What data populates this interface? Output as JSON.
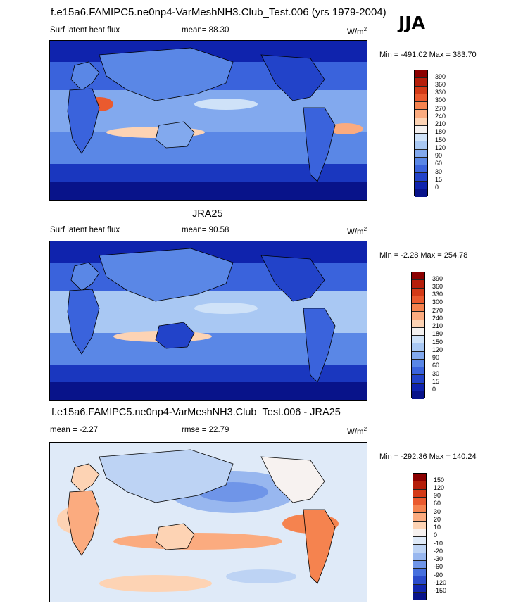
{
  "header": {
    "title": "f.e15a6.FAMIPC5.ne0np4-VarMeshNH3.Club_Test.006 (yrs 1979-2004)",
    "season": "JJA"
  },
  "panels": [
    {
      "id": "model",
      "variable": "Surf latent heat flux",
      "stat_label": "mean=  88.30",
      "units_base": "W/m",
      "units_sup": "2",
      "minmax": "Min = -491.02 Max = 383.70",
      "levels": [
        "390",
        "360",
        "330",
        "300",
        "270",
        "240",
        "210",
        "180",
        "150",
        "120",
        "90",
        "60",
        "30",
        "15",
        "0"
      ],
      "colors": [
        "#8b0000",
        "#b51e0a",
        "#d33a17",
        "#ea5a2e",
        "#f5834f",
        "#fbab7f",
        "#fdd3b4",
        "#f4f1f0",
        "#cfe2f8",
        "#a9c8f3",
        "#82a9ee",
        "#5a87e6",
        "#3a63dc",
        "#2243c9",
        "#0f23ad",
        "#08138a"
      ]
    },
    {
      "id": "obs",
      "heading": "JRA25",
      "variable": "Surf latent heat flux",
      "stat_label": "mean=  90.58",
      "units_base": "W/m",
      "units_sup": "2",
      "minmax": "Min =  -2.28 Max = 254.78",
      "levels": [
        "390",
        "360",
        "330",
        "300",
        "270",
        "240",
        "210",
        "180",
        "150",
        "120",
        "90",
        "60",
        "30",
        "15",
        "0"
      ],
      "colors": [
        "#8b0000",
        "#b51e0a",
        "#d33a17",
        "#ea5a2e",
        "#f5834f",
        "#fbab7f",
        "#fdd3b4",
        "#f4f1f0",
        "#cfe2f8",
        "#a9c8f3",
        "#82a9ee",
        "#5a87e6",
        "#3a63dc",
        "#2243c9",
        "#0f23ad",
        "#08138a"
      ]
    },
    {
      "id": "diff",
      "heading": "f.e15a6.FAMIPC5.ne0np4-VarMeshNH3.Club_Test.006 - JRA25",
      "stat_label": "mean =  -2.27",
      "rmse_label": "rmse =  22.79",
      "units_base": "W/m",
      "units_sup": "2",
      "minmax": "Min = -292.36 Max = 140.24",
      "levels": [
        "150",
        "120",
        "90",
        "60",
        "30",
        "20",
        "10",
        "0",
        "-10",
        "-20",
        "-30",
        "-60",
        "-90",
        "-120",
        "-150"
      ],
      "colors": [
        "#8b0000",
        "#b51e0a",
        "#d33a17",
        "#ea5a2e",
        "#f5834f",
        "#fbab7f",
        "#fdd3b4",
        "#f7f2f0",
        "#dfeaf8",
        "#bdd3f4",
        "#98b7ef",
        "#6f95e8",
        "#4670de",
        "#2a4bcb",
        "#1126ae",
        "#08138a"
      ]
    }
  ]
}
